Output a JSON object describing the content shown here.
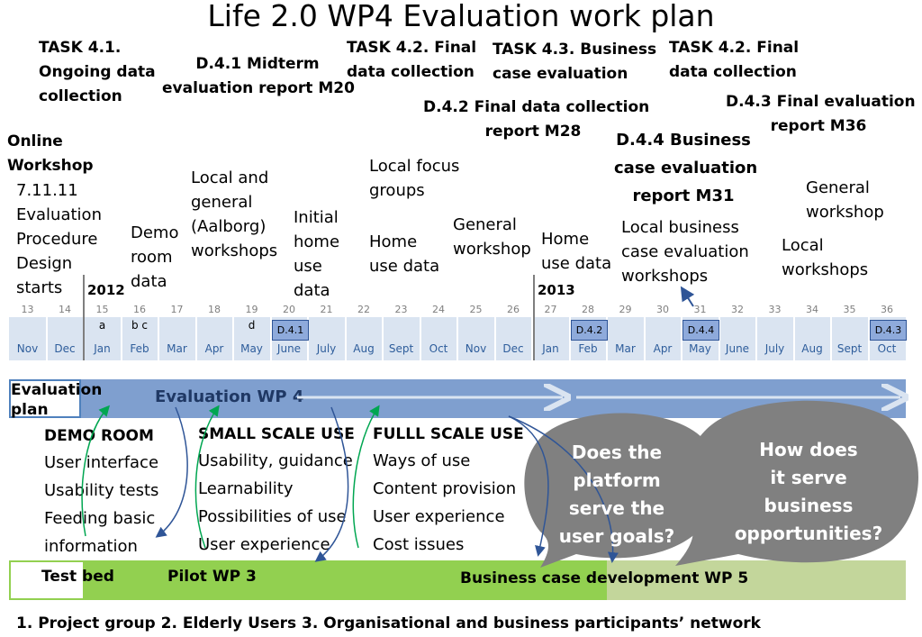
{
  "title": "Life 2.0 WP4 Evaluation work plan",
  "top_labels": {
    "task41": [
      "TASK 4.1.",
      "Ongoing data",
      "collection"
    ],
    "d41": [
      "D.4.1 Midterm",
      "evaluation report M20"
    ],
    "task42a": [
      "TASK 4.2. Final",
      "data collection"
    ],
    "task43": [
      "TASK 4.3. Business",
      "case evaluation"
    ],
    "task42b": [
      "TASK 4.2. Final",
      "data collection"
    ],
    "d42": [
      "D.4.2 Final data collection",
      "report M28"
    ],
    "d43": [
      "D.4.3 Final evaluation",
      "report M36"
    ],
    "d44": [
      "D.4.4 Business",
      "case evaluation",
      "report M31"
    ]
  },
  "events": {
    "online_workshop": [
      "Online",
      "Workshop"
    ],
    "eval_design": [
      "7.11.11",
      "Evaluation",
      "Procedure",
      "Design",
      "starts"
    ],
    "demo_room_data": [
      "Demo",
      "room",
      "data"
    ],
    "local_general": [
      "Local  and",
      "general",
      "(Aalborg)",
      "workshops"
    ],
    "initial_home": [
      "Initial",
      "home",
      "use",
      "data"
    ],
    "local_focus": [
      "Local focus",
      "groups"
    ],
    "home_use_1": [
      "Home",
      "use data"
    ],
    "general_ws_1": [
      "General",
      "workshop"
    ],
    "home_use_2": [
      "Home",
      "use data"
    ],
    "local_business": [
      "Local business",
      "case evaluation",
      "workshops"
    ],
    "general_ws_2": [
      "General",
      "workshop"
    ],
    "local_ws": [
      "Local",
      "workshops"
    ]
  },
  "year_labels": [
    "2012",
    "2013"
  ],
  "timeline": {
    "cells": [
      {
        "num": "13",
        "month": "Nov",
        "mark": ""
      },
      {
        "num": "14",
        "month": "Dec",
        "mark": ""
      },
      {
        "num": "15",
        "month": "Jan",
        "mark": "a"
      },
      {
        "num": "16",
        "month": "Feb",
        "mark": "b  c"
      },
      {
        "num": "17",
        "month": "Mar",
        "mark": ""
      },
      {
        "num": "18",
        "month": "Apr",
        "mark": ""
      },
      {
        "num": "19",
        "month": "May",
        "mark": "d"
      },
      {
        "num": "20",
        "month": "June",
        "mark": ""
      },
      {
        "num": "21",
        "month": "July",
        "mark": ""
      },
      {
        "num": "22",
        "month": "Aug",
        "mark": ""
      },
      {
        "num": "23",
        "month": "Sept",
        "mark": ""
      },
      {
        "num": "24",
        "month": "Oct",
        "mark": ""
      },
      {
        "num": "25",
        "month": "Nov",
        "mark": ""
      },
      {
        "num": "26",
        "month": "Dec",
        "mark": ""
      },
      {
        "num": "27",
        "month": "Jan",
        "mark": ""
      },
      {
        "num": "28",
        "month": "Feb",
        "mark": ""
      },
      {
        "num": "29",
        "month": "Mar",
        "mark": ""
      },
      {
        "num": "30",
        "month": "Apr",
        "mark": ""
      },
      {
        "num": "31",
        "month": "May",
        "mark": ""
      },
      {
        "num": "32",
        "month": "June",
        "mark": ""
      },
      {
        "num": "33",
        "month": "July",
        "mark": ""
      },
      {
        "num": "34",
        "month": "Aug",
        "mark": ""
      },
      {
        "num": "35",
        "month": "Sept",
        "mark": ""
      },
      {
        "num": "36",
        "month": "Oct",
        "mark": ""
      }
    ],
    "deliverables": [
      "D.4.1",
      "D.4.2",
      "D.4.4",
      "D.4.3"
    ]
  },
  "bands": {
    "evaluation_plan": [
      "Evaluation",
      "plan"
    ],
    "evaluation_wp": "Evaluation WP 4",
    "test_bed": "Test bed",
    "pilot_wp": "Pilot WP 3",
    "business_wp": "Business case development WP 5"
  },
  "columns": {
    "demo_room": {
      "heading": "DEMO ROOM",
      "items": [
        "User interface",
        "Usability tests",
        "Feeding basic",
        "information"
      ]
    },
    "small_scale": {
      "heading": "SMALL SCALE USE",
      "items": [
        "Usability, guidance",
        "Learnability",
        "Possibilities of use",
        "User experience"
      ]
    },
    "full_scale": {
      "heading": "FULLL SCALE  USE",
      "items": [
        "Ways of use",
        "Content provision",
        "User experience",
        "Cost issues"
      ]
    }
  },
  "bubbles": {
    "user_goals": [
      "Does the",
      "platform",
      "serve the",
      "user goals?"
    ],
    "business": [
      "How does",
      "it serve",
      "business",
      "opportunities?"
    ]
  },
  "footer": "1. Project group  2. Elderly  Users  3. Organisational and business participants’ network",
  "colors": {
    "eval_band": "#7f9fcf",
    "timeline": "#dae4f1",
    "green_dark": "#92d050",
    "green_light": "#c3d69b",
    "bubble": "#808080",
    "deliverable": "#8eaadb",
    "month_text": "#2e5d9b"
  }
}
